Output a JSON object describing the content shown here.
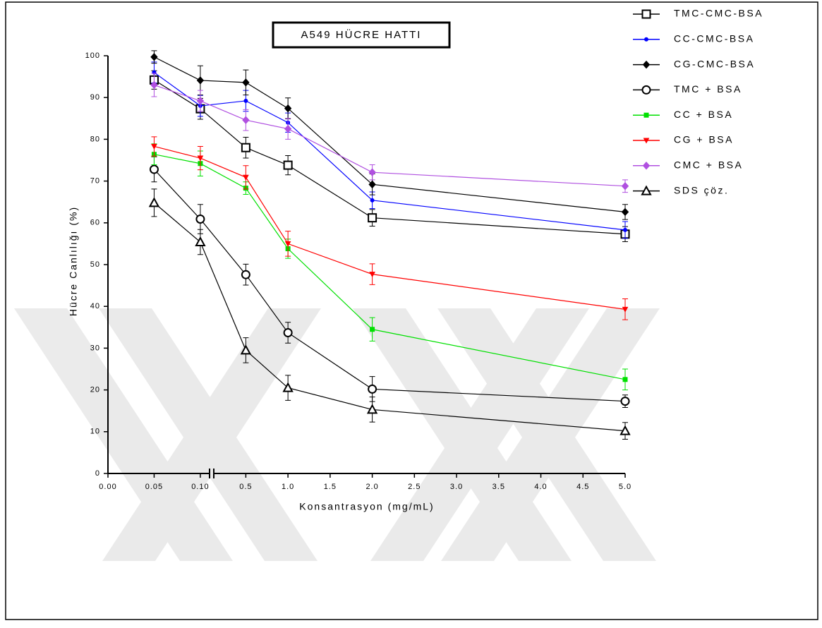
{
  "chart_data": {
    "type": "line",
    "title": "A549 HÜCRE HATTI",
    "x_label": "Konsantrasyon (mg/mL)",
    "y_label": "Hücre Canlılığı (%)",
    "x": [
      0.05,
      0.1,
      0.5,
      1.0,
      2.0,
      5.0
    ],
    "x_segments": [
      {
        "xlim": [
          0,
          0.11
        ],
        "xticks": [
          {
            "value": 0,
            "label": "0.00"
          },
          0.05,
          {
            "value": 0.1,
            "label": "0.10"
          }
        ]
      },
      {
        "xlim": [
          0.12,
          5.0
        ],
        "xticks": [
          0.5,
          {
            "value": 1.0,
            "label": "1.0"
          },
          1.5,
          {
            "value": 2.0,
            "label": "2.0"
          },
          2.5,
          {
            "value": 3.0,
            "label": "3.0"
          },
          3.5,
          {
            "value": 4.0,
            "label": "4.0"
          },
          4.5,
          {
            "value": 5.0,
            "label": "5.0"
          }
        ]
      }
    ],
    "ylim": [
      0,
      100
    ],
    "yticks": [
      0,
      10,
      20,
      30,
      40,
      50,
      60,
      70,
      80,
      90,
      100
    ],
    "series": [
      {
        "name": "TMC-CMC-BSA",
        "color": "#000000",
        "marker": "square-open",
        "values": [
          94.2,
          87.3,
          78.0,
          73.8,
          61.2,
          57.3
        ],
        "errors": [
          2.2,
          2.5,
          2.5,
          2.3,
          2.0,
          1.8
        ]
      },
      {
        "name": "CC-CMC-BSA",
        "color": "#0000ff",
        "marker": "circle",
        "values": [
          96.0,
          88.0,
          89.2,
          84.0,
          65.4,
          58.3
        ],
        "errors": [
          2.5,
          2.5,
          2.5,
          2.3,
          2.0,
          2.0
        ]
      },
      {
        "name": "CG-CMC-BSA",
        "color": "#000000",
        "marker": "diamond",
        "values": [
          99.7,
          94.1,
          93.6,
          87.4,
          69.2,
          62.6
        ],
        "errors": [
          1.5,
          3.5,
          3.0,
          2.5,
          2.5,
          1.8
        ]
      },
      {
        "name": "TMC + BSA",
        "color": "#000000",
        "marker": "circle-open",
        "values": [
          72.8,
          60.9,
          47.6,
          33.7,
          20.2,
          17.3
        ],
        "errors": [
          3.0,
          3.5,
          2.5,
          2.5,
          3.0,
          1.5
        ]
      },
      {
        "name": "CC + BSA",
        "color": "#00e000",
        "marker": "square",
        "values": [
          76.4,
          74.2,
          68.3,
          53.8,
          34.5,
          22.5
        ],
        "errors": [
          2.5,
          3.0,
          1.5,
          2.3,
          2.8,
          2.5
        ]
      },
      {
        "name": "CG + BSA",
        "color": "#ff0000",
        "marker": "triangle-down",
        "values": [
          78.3,
          75.5,
          70.9,
          55.0,
          47.7,
          39.3
        ],
        "errors": [
          2.3,
          2.8,
          2.8,
          3.0,
          2.5,
          2.5
        ]
      },
      {
        "name": "CMC + BSA",
        "color": "#b050e0",
        "marker": "diamond",
        "values": [
          93.0,
          89.2,
          84.6,
          82.5,
          72.1,
          68.8
        ],
        "errors": [
          2.8,
          2.5,
          2.5,
          2.5,
          1.8,
          1.5
        ]
      },
      {
        "name": "SDS çöz.",
        "color": "#000000",
        "marker": "triangle-open",
        "values": [
          64.8,
          55.4,
          29.5,
          20.5,
          15.3,
          10.2
        ],
        "errors": [
          3.3,
          3.0,
          3.0,
          3.0,
          3.0,
          2.0
        ]
      }
    ]
  }
}
